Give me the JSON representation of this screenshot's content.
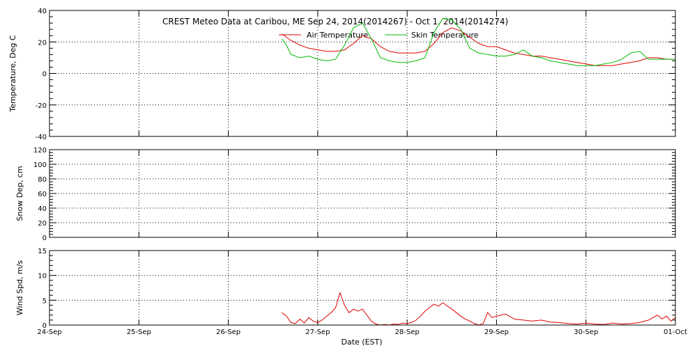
{
  "title": "CREST Meteo Data at Caribou, ME   Sep 24, 2014(2014267) - Oct  1, 2014(2014274)",
  "xlabel": "Date (EST)",
  "x_tick_labels": [
    "24-Sep",
    "25-Sep",
    "26-Sep",
    "27-Sep",
    "28-Sep",
    "29-Sep",
    "30-Sep",
    "01-Oct"
  ],
  "colors": {
    "air": "#dd0000",
    "skin": "#00bb00",
    "wind": "#dd0000",
    "axis": "#000000",
    "grid": "#000000"
  },
  "chart_data": [
    {
      "type": "line",
      "ylabel": "Temperature, Deg C",
      "ylim": [
        -40,
        40
      ],
      "yticks": [
        -40,
        -20,
        0,
        20,
        40
      ],
      "xlim": [
        0,
        7
      ],
      "grid": true,
      "legend_position": "top-center",
      "series": [
        {
          "name": "Air Temperature",
          "color": "#dd0000",
          "x": [
            2.6,
            2.7,
            2.8,
            2.9,
            3.0,
            3.1,
            3.2,
            3.3,
            3.4,
            3.5,
            3.6,
            3.7,
            3.8,
            3.9,
            4.0,
            4.1,
            4.2,
            4.3,
            4.4,
            4.5,
            4.6,
            4.7,
            4.8,
            4.9,
            5.0,
            5.1,
            5.2,
            5.3,
            5.4,
            5.5,
            5.6,
            5.7,
            5.8,
            5.9,
            6.0,
            6.1,
            6.2,
            6.3,
            6.4,
            6.5,
            6.6,
            6.7,
            6.8,
            6.9,
            7.0
          ],
          "values": [
            25,
            21,
            18,
            16,
            15,
            14,
            14,
            15,
            19,
            24,
            22,
            17,
            14,
            13,
            13,
            13,
            14,
            19,
            26,
            29,
            27,
            23,
            19,
            17,
            17,
            15,
            13,
            12,
            11,
            11,
            10,
            9,
            8,
            7,
            6,
            5,
            5,
            5,
            6,
            7,
            8,
            10,
            10,
            9,
            9
          ]
        },
        {
          "name": "Skin Temperature",
          "color": "#00bb00",
          "x": [
            2.6,
            2.65,
            2.7,
            2.8,
            2.9,
            3.0,
            3.1,
            3.2,
            3.3,
            3.4,
            3.5,
            3.6,
            3.7,
            3.8,
            3.9,
            4.0,
            4.1,
            4.2,
            4.3,
            4.4,
            4.5,
            4.6,
            4.7,
            4.8,
            4.9,
            5.0,
            5.1,
            5.2,
            5.3,
            5.4,
            5.5,
            5.6,
            5.7,
            5.8,
            5.9,
            6.0,
            6.1,
            6.2,
            6.3,
            6.4,
            6.5,
            6.6,
            6.7,
            6.8,
            6.9,
            7.0
          ],
          "values": [
            22,
            18,
            12,
            10,
            11,
            9,
            8,
            9,
            18,
            29,
            32,
            22,
            10,
            8,
            7,
            7,
            8,
            10,
            26,
            35,
            34,
            28,
            16,
            13,
            12,
            11,
            11,
            12,
            15,
            11,
            10,
            8,
            7,
            6,
            5,
            5,
            5,
            6,
            7,
            9,
            13,
            14,
            9,
            9,
            9,
            9
          ]
        }
      ]
    },
    {
      "type": "line",
      "ylabel": "Snow Dep, cm",
      "ylim": [
        0,
        120
      ],
      "yticks": [
        0,
        20,
        40,
        60,
        80,
        100,
        120
      ],
      "xlim": [
        0,
        7
      ],
      "grid": true,
      "series": []
    },
    {
      "type": "line",
      "ylabel": "Wind Spd, m/s",
      "ylim": [
        0,
        15
      ],
      "yticks": [
        0,
        5,
        10,
        15
      ],
      "xlim": [
        0,
        7
      ],
      "grid": true,
      "series": [
        {
          "color": "#dd0000",
          "x": [
            2.6,
            2.65,
            2.7,
            2.75,
            2.8,
            2.85,
            2.9,
            2.95,
            3.0,
            3.05,
            3.1,
            3.15,
            3.2,
            3.25,
            3.3,
            3.35,
            3.4,
            3.45,
            3.5,
            3.55,
            3.6,
            3.65,
            3.7,
            3.75,
            3.8,
            3.85,
            3.9,
            3.95,
            4.0,
            4.05,
            4.1,
            4.15,
            4.2,
            4.25,
            4.3,
            4.35,
            4.4,
            4.45,
            4.5,
            4.55,
            4.6,
            4.65,
            4.7,
            4.75,
            4.8,
            4.85,
            4.9,
            4.95,
            5.0,
            5.1,
            5.2,
            5.3,
            5.4,
            5.5,
            5.6,
            5.7,
            5.8,
            5.9,
            6.0,
            6.1,
            6.2,
            6.3,
            6.4,
            6.5,
            6.6,
            6.7,
            6.75,
            6.8,
            6.85,
            6.9,
            6.95,
            7.0
          ],
          "values": [
            2.5,
            1.8,
            0.5,
            0.3,
            1.2,
            0.4,
            1.5,
            0.8,
            0.5,
            1.0,
            1.8,
            2.5,
            3.5,
            6.5,
            4.0,
            2.5,
            3.2,
            2.8,
            3.2,
            2.0,
            0.8,
            0.2,
            0.0,
            0.1,
            0.0,
            0.2,
            0.1,
            0.4,
            0.3,
            0.5,
            1.0,
            1.8,
            2.8,
            3.5,
            4.2,
            3.8,
            4.5,
            3.8,
            3.2,
            2.5,
            1.8,
            1.2,
            0.8,
            0.3,
            0.0,
            0.3,
            2.5,
            1.5,
            1.8,
            2.2,
            1.2,
            1.0,
            0.8,
            1.0,
            0.6,
            0.5,
            0.3,
            0.2,
            0.4,
            0.2,
            0.1,
            0.4,
            0.2,
            0.3,
            0.5,
            1.0,
            1.5,
            2.0,
            1.2,
            1.8,
            0.8,
            1.5
          ]
        }
      ]
    }
  ]
}
